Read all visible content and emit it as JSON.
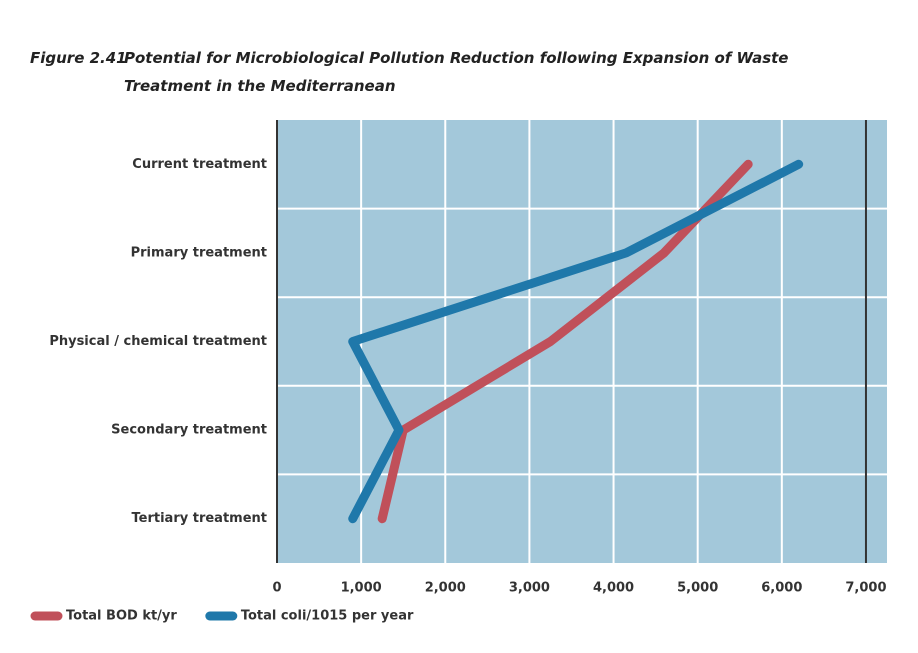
{
  "chart_data": {
    "type": "line",
    "figure_label": "Figure 2.41",
    "title": "Potential for Microbiological Pollution Reduction following Expansion of Waste Treatment in the Mediterranean",
    "categories": [
      "Current treatment",
      "Primary treatment",
      "Physical / chemical treatment",
      "Secondary treatment",
      "Tertiary treatment"
    ],
    "series": [
      {
        "name": "Total BOD kt/yr",
        "color": "#c0505a",
        "values": [
          5600,
          4600,
          3250,
          1500,
          1250
        ]
      },
      {
        "name": "Total coli/1015 per year",
        "color": "#1f78aa",
        "values": [
          6200,
          4150,
          900,
          1450,
          900
        ]
      }
    ],
    "xlim": [
      0,
      7250
    ],
    "xticks": [
      0,
      {
        "value": 1000,
        "label": "1,000"
      },
      {
        "value": 2000,
        "label": "2,000"
      },
      {
        "value": 3000,
        "label": "3,000"
      },
      {
        "value": 4000,
        "label": "4,000"
      },
      {
        "value": 5000,
        "label": "5,000"
      },
      {
        "value": 6000,
        "label": "6,000"
      },
      {
        "value": 7000,
        "label": "7,000"
      }
    ],
    "grid": true,
    "legend": "bottom-left"
  }
}
